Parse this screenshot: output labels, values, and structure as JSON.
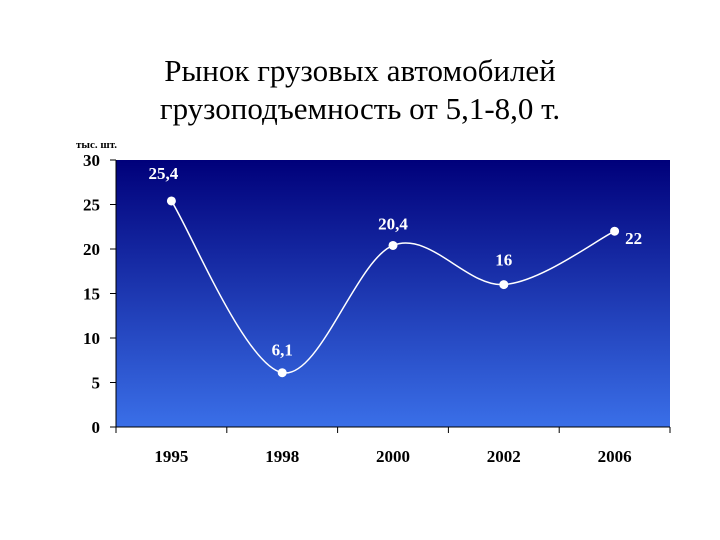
{
  "title": {
    "line1": "Рынок грузовых автомобилей",
    "line2": "грузоподъемность от 5,1-8,0 т."
  },
  "colors": {
    "plot_top": "#00007a",
    "plot_bottom": "#3a6fe8",
    "line": "#ffffff"
  },
  "chart_data": {
    "type": "line",
    "ylabel": "тыс. шт.",
    "categories": [
      "1995",
      "1998",
      "2000",
      "2002",
      "2006"
    ],
    "values": [
      25.4,
      6.1,
      20.4,
      16,
      22
    ],
    "data_labels": [
      "25,4",
      "6,1",
      "20,4",
      "16",
      "22"
    ],
    "y_ticks": [
      0,
      5,
      10,
      15,
      20,
      25,
      30
    ],
    "ylim": [
      0,
      30
    ],
    "smooth": true,
    "grid": false
  }
}
